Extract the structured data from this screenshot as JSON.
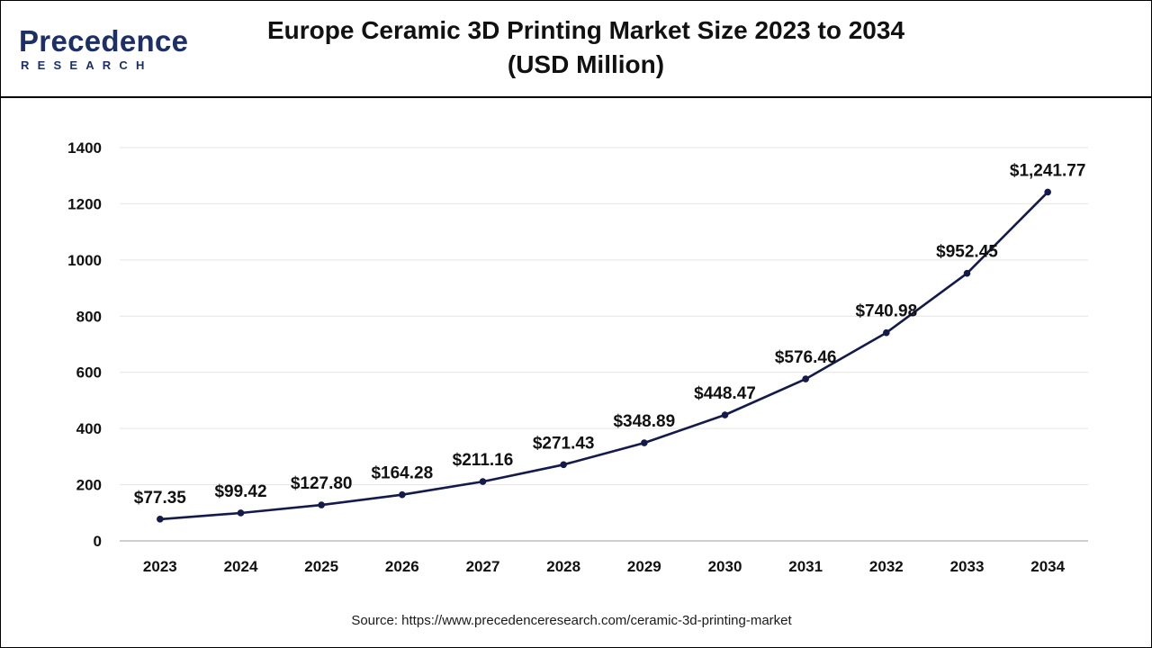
{
  "logo": {
    "name": "Precedence",
    "tagline": "RESEARCH"
  },
  "header": {
    "title_line1": "Europe Ceramic 3D Printing Market Size 2023 to 2034",
    "title_line2": "(USD Million)"
  },
  "colors": {
    "line": "#141a4a",
    "brand": "#1c2f66",
    "grid": "#e4e4e4",
    "text": "#111111"
  },
  "chart_data": {
    "type": "line",
    "title": "Europe Ceramic 3D Printing Market Size 2023 to 2034 (USD Million)",
    "xlabel": "",
    "ylabel": "",
    "categories": [
      "2023",
      "2024",
      "2025",
      "2026",
      "2027",
      "2028",
      "2029",
      "2030",
      "2031",
      "2032",
      "2033",
      "2034"
    ],
    "values": [
      77.35,
      99.42,
      127.8,
      164.28,
      211.16,
      271.43,
      348.89,
      448.47,
      576.46,
      740.98,
      952.45,
      1241.77
    ],
    "data_labels": [
      "$77.35",
      "$99.42",
      "$127.80",
      "$164.28",
      "$211.16",
      "$271.43",
      "$348.89",
      "$448.47",
      "$576.46",
      "$740.98",
      "$952.45",
      "$1,241.77"
    ],
    "ylim": [
      0,
      1400
    ],
    "yticks": [
      0,
      200,
      400,
      600,
      800,
      1000,
      1200,
      1400
    ],
    "grid": true,
    "legend": "none"
  },
  "source": "Source: https://www.precedenceresearch.com/ceramic-3d-printing-market"
}
